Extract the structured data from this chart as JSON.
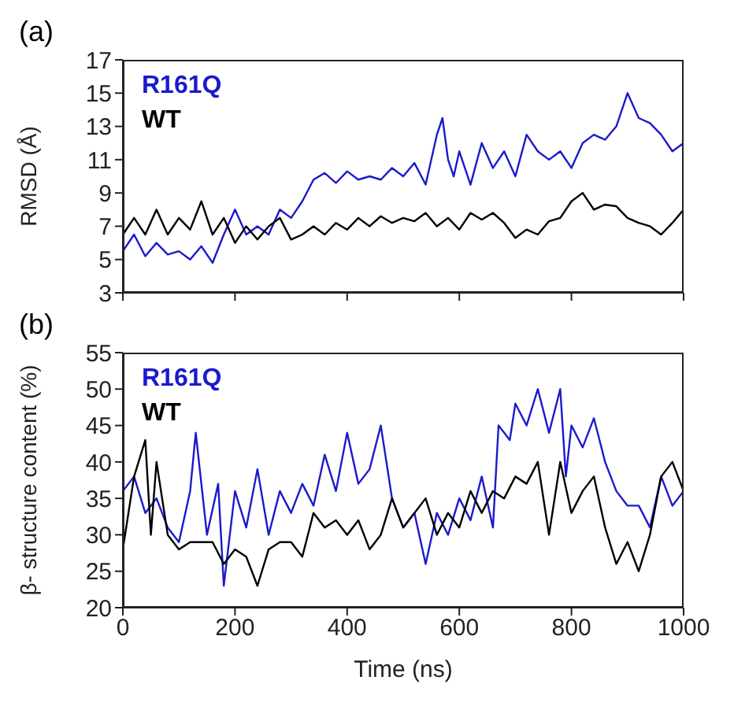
{
  "chart_data": [
    {
      "type": "line",
      "title": "(a)",
      "ylabel": "RMSD (Å)",
      "xlim": [
        0,
        1000
      ],
      "xticks": [
        0,
        200,
        400,
        600,
        800,
        1000
      ],
      "ylim": [
        3,
        17
      ],
      "yticks": [
        3,
        5,
        7,
        9,
        11,
        13,
        15,
        17
      ],
      "tick_labels": "y",
      "legend": "top left",
      "series": [
        {
          "name": "R161Q",
          "color": "#1a1acc",
          "x": [
            0,
            20,
            40,
            60,
            80,
            100,
            120,
            140,
            160,
            180,
            200,
            220,
            240,
            260,
            280,
            300,
            320,
            340,
            360,
            380,
            400,
            420,
            440,
            460,
            480,
            500,
            520,
            540,
            560,
            570,
            580,
            590,
            600,
            620,
            640,
            660,
            680,
            700,
            720,
            740,
            760,
            780,
            800,
            820,
            840,
            860,
            880,
            900,
            920,
            940,
            960,
            980,
            1000
          ],
          "values": [
            5.5,
            6.5,
            5.2,
            6,
            5.3,
            5.5,
            5,
            5.8,
            4.8,
            6.5,
            8,
            6.5,
            7,
            6.5,
            8,
            7.5,
            8.5,
            9.8,
            10.2,
            9.6,
            10.3,
            9.8,
            10,
            9.8,
            10.5,
            10,
            10.8,
            9.5,
            12.5,
            13.5,
            11,
            10,
            11.5,
            9.5,
            12,
            10.5,
            11.5,
            10,
            12.5,
            11.5,
            11,
            11.5,
            10.5,
            12,
            12.5,
            12.2,
            13,
            15,
            13.5,
            13.2,
            12.5,
            11.5,
            12
          ]
        },
        {
          "name": "WT",
          "color": "#000000",
          "x": [
            0,
            20,
            40,
            60,
            80,
            100,
            120,
            140,
            160,
            180,
            200,
            220,
            240,
            260,
            280,
            300,
            320,
            340,
            360,
            380,
            400,
            420,
            440,
            460,
            480,
            500,
            520,
            540,
            560,
            580,
            600,
            620,
            640,
            660,
            680,
            700,
            720,
            740,
            760,
            780,
            800,
            820,
            840,
            860,
            880,
            900,
            920,
            940,
            960,
            980,
            1000
          ],
          "values": [
            6.5,
            7.5,
            6.5,
            8,
            6.5,
            7.5,
            6.8,
            8.5,
            6.5,
            7.5,
            6,
            7,
            6.2,
            7,
            7.5,
            6.2,
            6.5,
            7,
            6.5,
            7.2,
            6.8,
            7.5,
            7,
            7.6,
            7.2,
            7.5,
            7.3,
            7.8,
            7,
            7.5,
            6.8,
            7.8,
            7.4,
            7.8,
            7.2,
            6.3,
            6.8,
            6.5,
            7.3,
            7.5,
            8.5,
            9,
            8,
            8.3,
            8.2,
            7.5,
            7.2,
            7,
            6.5,
            7.2,
            8
          ]
        }
      ]
    },
    {
      "type": "line",
      "title": "(b)",
      "xlabel": "Time (ns)",
      "ylabel": "β- structure content (%)",
      "xlim": [
        0,
        1000
      ],
      "xticks": [
        0,
        200,
        400,
        600,
        800,
        1000
      ],
      "ylim": [
        20,
        55
      ],
      "yticks": [
        20,
        25,
        30,
        35,
        40,
        45,
        50,
        55
      ],
      "legend": "top left",
      "series": [
        {
          "name": "R161Q",
          "color": "#1a1acc",
          "x": [
            0,
            20,
            40,
            60,
            80,
            100,
            120,
            130,
            150,
            170,
            180,
            200,
            220,
            240,
            260,
            280,
            300,
            320,
            340,
            360,
            380,
            400,
            420,
            440,
            460,
            480,
            500,
            520,
            540,
            560,
            580,
            600,
            620,
            640,
            660,
            670,
            690,
            700,
            720,
            740,
            760,
            780,
            790,
            800,
            820,
            840,
            860,
            880,
            900,
            920,
            940,
            960,
            980,
            1000
          ],
          "values": [
            36,
            38,
            33,
            35,
            31,
            29,
            36,
            44,
            30,
            37,
            23,
            36,
            31,
            39,
            30,
            36,
            33,
            37,
            34,
            41,
            36,
            44,
            37,
            39,
            45,
            35,
            31,
            33,
            26,
            33,
            30,
            35,
            32,
            38,
            31,
            45,
            43,
            48,
            45,
            50,
            44,
            50,
            38,
            45,
            42,
            46,
            40,
            36,
            34,
            34,
            31,
            38,
            34,
            36
          ]
        },
        {
          "name": "WT",
          "color": "#000000",
          "x": [
            0,
            20,
            40,
            50,
            60,
            80,
            100,
            120,
            140,
            160,
            180,
            200,
            220,
            240,
            260,
            280,
            300,
            320,
            340,
            360,
            380,
            400,
            420,
            440,
            460,
            480,
            500,
            520,
            540,
            560,
            580,
            600,
            620,
            640,
            660,
            680,
            700,
            720,
            740,
            760,
            780,
            800,
            820,
            840,
            860,
            880,
            900,
            920,
            940,
            960,
            980,
            1000
          ],
          "values": [
            28,
            38,
            43,
            30,
            40,
            30,
            28,
            29,
            29,
            29,
            26,
            28,
            27,
            23,
            28,
            29,
            29,
            27,
            33,
            31,
            32,
            30,
            32,
            28,
            30,
            35,
            31,
            33,
            35,
            30,
            33,
            31,
            36,
            33,
            36,
            35,
            38,
            37,
            40,
            30,
            40,
            33,
            36,
            38,
            31,
            26,
            29,
            25,
            30,
            38,
            40,
            36
          ]
        }
      ]
    }
  ]
}
